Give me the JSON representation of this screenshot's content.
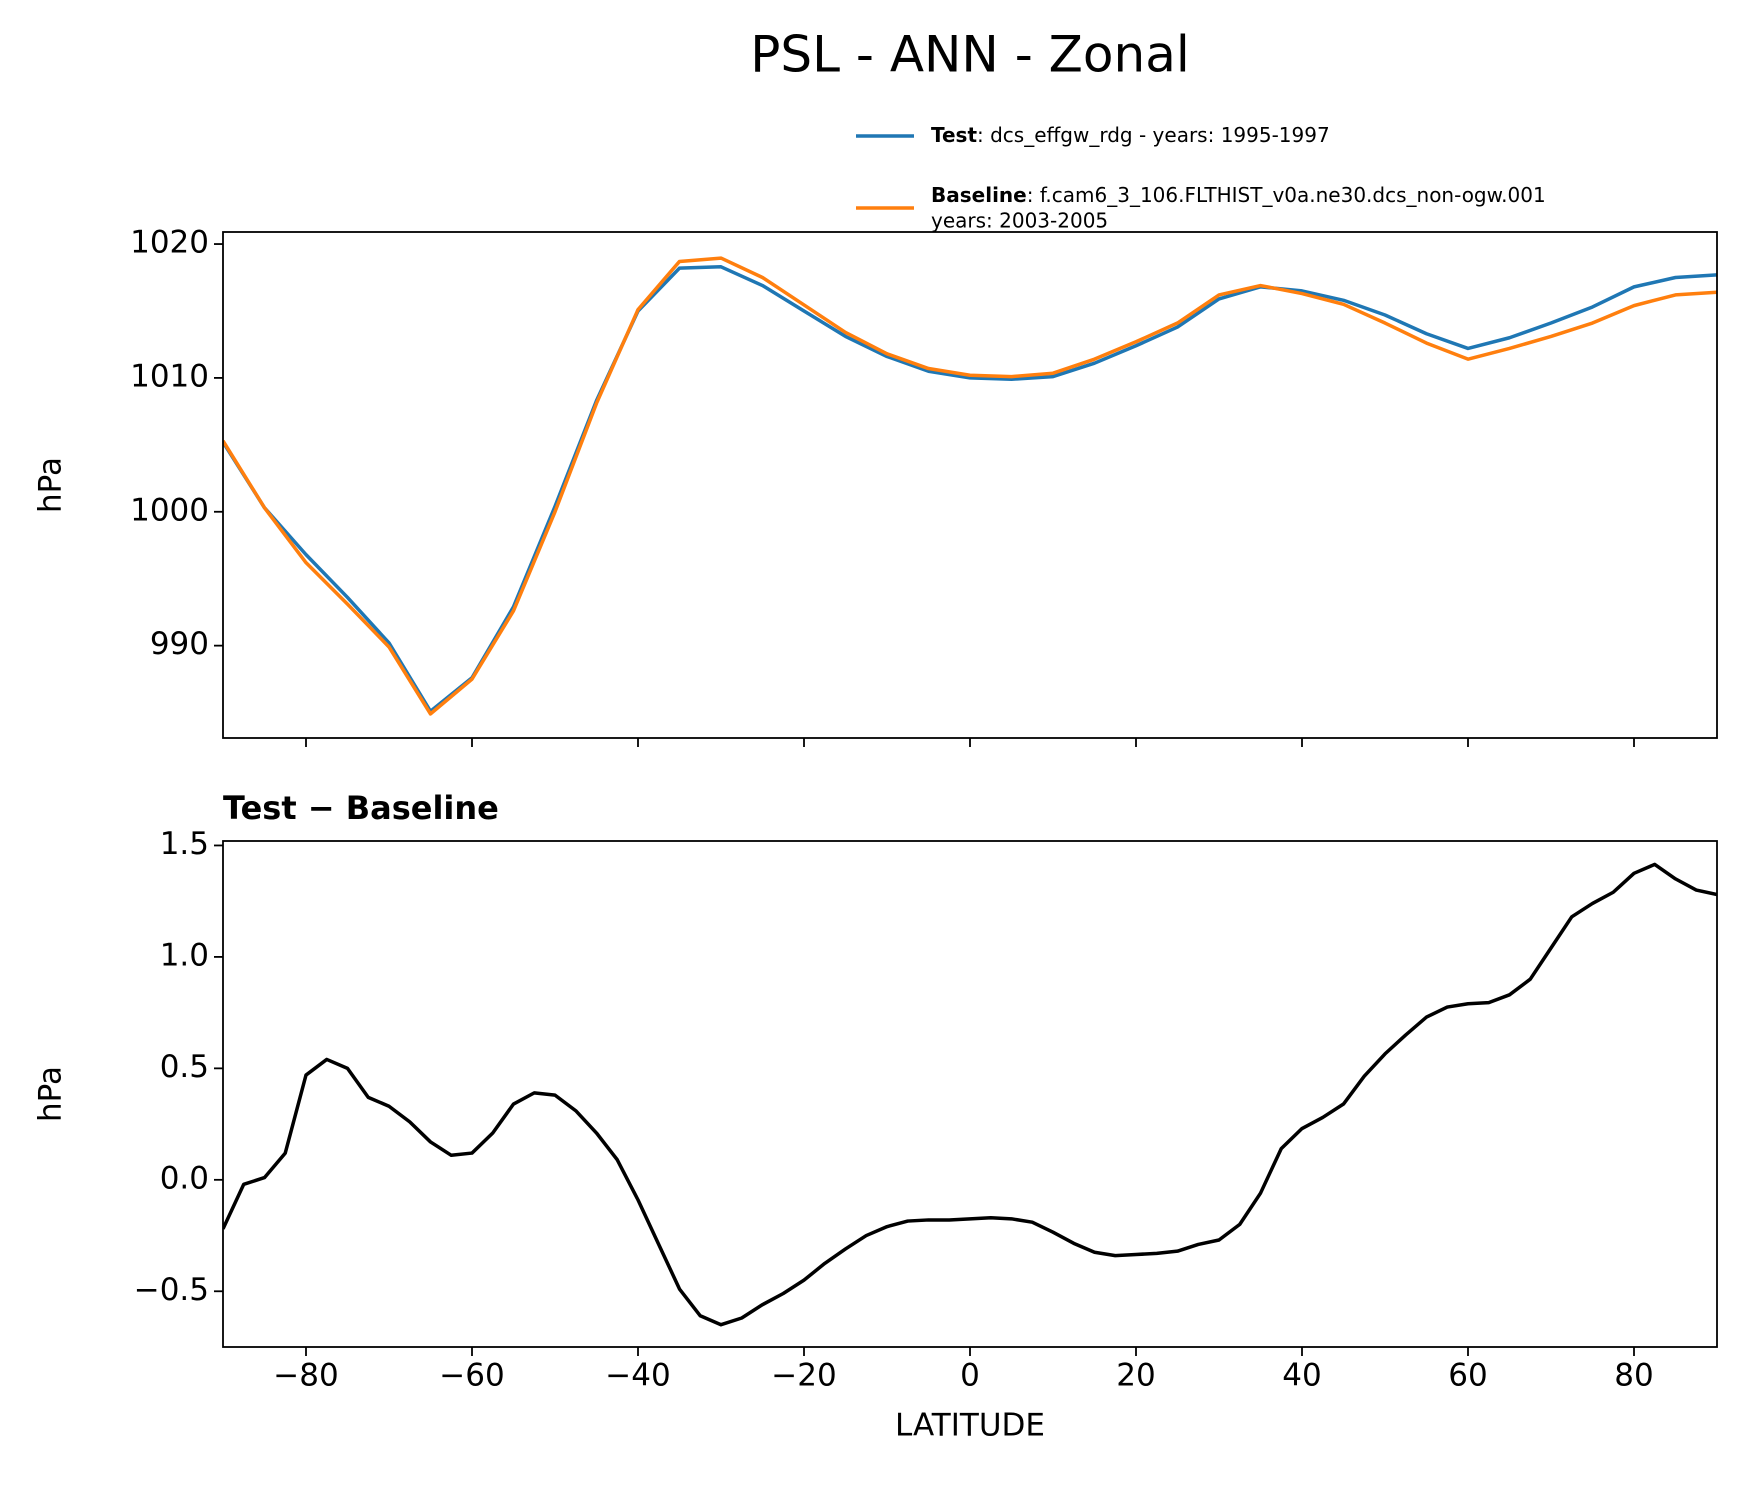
{
  "figure_title": "PSL - ANN - Zonal",
  "chart_data": [
    {
      "type": "line",
      "ylabel": "hPa",
      "x": [
        -90,
        -85,
        -80,
        -75,
        -70,
        -65,
        -60,
        -55,
        -50,
        -45,
        -40,
        -35,
        -30,
        -25,
        -20,
        -15,
        -10,
        -5,
        0,
        5,
        10,
        15,
        20,
        25,
        30,
        35,
        40,
        45,
        50,
        55,
        60,
        65,
        70,
        75,
        80,
        85,
        90
      ],
      "series": [
        {
          "name": "Test",
          "description": [
            ": dcs_effgw_rdg - years: 1995-1997"
          ],
          "color": "#1f77b4",
          "values": [
            1005.2,
            1000.3,
            996.8,
            993.6,
            990.2,
            985.1,
            987.6,
            992.9,
            1000.4,
            1008.3,
            1015.0,
            1018.2,
            1018.3,
            1016.9,
            1015.0,
            1013.1,
            1011.6,
            1010.5,
            1010.0,
            1009.9,
            1010.1,
            1011.1,
            1012.4,
            1013.8,
            1015.9,
            1016.8,
            1016.5,
            1015.8,
            1014.7,
            1013.3,
            1012.2,
            1013.0,
            1014.1,
            1015.3,
            1016.8,
            1017.5,
            1017.7
          ]
        },
        {
          "name": "Baseline",
          "description": [
            ": f.cam6_3_106.FLTHIST_v0a.ne30.dcs_non-ogw.001",
            "years: 2003-2005"
          ],
          "color": "#ff7f0e",
          "values": [
            1005.3,
            1000.3,
            996.2,
            993.1,
            989.9,
            984.9,
            987.5,
            992.6,
            1000.0,
            1008.1,
            1015.1,
            1018.7,
            1018.95,
            1017.5,
            1015.45,
            1013.4,
            1011.8,
            1010.7,
            1010.2,
            1010.1,
            1010.35,
            1011.4,
            1012.7,
            1014.1,
            1016.2,
            1016.9,
            1016.3,
            1015.5,
            1014.1,
            1012.6,
            1011.4,
            1012.2,
            1013.1,
            1014.1,
            1015.4,
            1016.2,
            1016.4
          ]
        }
      ],
      "xlim": [
        -90,
        90
      ],
      "xticks": [
        -80,
        -60,
        -40,
        -20,
        0,
        20,
        40,
        60,
        80
      ],
      "ylim": [
        983.1,
        1020.9
      ],
      "yticks": [
        990,
        1000,
        1010,
        1020
      ]
    },
    {
      "type": "line",
      "title": "Test − Baseline",
      "xlabel": "LATITUDE",
      "ylabel": "hPa",
      "x": [
        -90,
        -87.5,
        -85,
        -82.5,
        -80,
        -77.5,
        -75,
        -72.5,
        -70,
        -67.5,
        -65,
        -62.5,
        -60,
        -57.5,
        -55,
        -52.5,
        -50,
        -47.5,
        -45,
        -42.5,
        -40,
        -37.5,
        -35,
        -32.5,
        -30,
        -27.5,
        -25,
        -22.5,
        -20,
        -17.5,
        -15,
        -12.5,
        -10,
        -7.5,
        -5,
        -2.5,
        0,
        2.5,
        5,
        7.5,
        10,
        12.5,
        15,
        17.5,
        20,
        22.5,
        25,
        27.5,
        30,
        32.5,
        35,
        37.5,
        40,
        42.5,
        45,
        47.5,
        50,
        52.5,
        55,
        57.5,
        60,
        62.5,
        65,
        67.5,
        70,
        72.5,
        75,
        77.5,
        80,
        82.5,
        85,
        87.5,
        90
      ],
      "series": [
        {
          "color": "#000000",
          "values": [
            -0.22,
            -0.02,
            0.01,
            0.12,
            0.47,
            0.54,
            0.5,
            0.37,
            0.33,
            0.26,
            0.17,
            0.11,
            0.12,
            0.21,
            0.34,
            0.39,
            0.38,
            0.31,
            0.21,
            0.09,
            -0.09,
            -0.29,
            -0.49,
            -0.61,
            -0.65,
            -0.62,
            -0.56,
            -0.51,
            -0.45,
            -0.375,
            -0.31,
            -0.25,
            -0.21,
            -0.185,
            -0.18,
            -0.18,
            -0.175,
            -0.17,
            -0.175,
            -0.19,
            -0.235,
            -0.285,
            -0.325,
            -0.34,
            -0.335,
            -0.33,
            -0.32,
            -0.29,
            -0.27,
            -0.2,
            -0.06,
            0.14,
            0.23,
            0.28,
            0.34,
            0.465,
            0.565,
            0.65,
            0.73,
            0.775,
            0.79,
            0.795,
            0.83,
            0.9,
            1.04,
            1.18,
            1.24,
            1.29,
            1.375,
            1.415,
            1.35,
            1.3,
            1.28
          ]
        }
      ],
      "xlim": [
        -90,
        90
      ],
      "xticks": [
        {
          "value": -80,
          "label": "−80"
        },
        {
          "value": -60,
          "label": "−60"
        },
        {
          "value": -40,
          "label": "−40"
        },
        {
          "value": -20,
          "label": "−20"
        },
        0,
        20,
        40,
        60,
        80
      ],
      "ylim": [
        -0.75,
        1.52
      ],
      "yticks": [
        {
          "value": -0.5,
          "label": "−0.5"
        },
        {
          "value": 0,
          "label": "0.0"
        },
        0.5,
        {
          "value": 1,
          "label": "1.0"
        },
        1.5
      ]
    }
  ]
}
